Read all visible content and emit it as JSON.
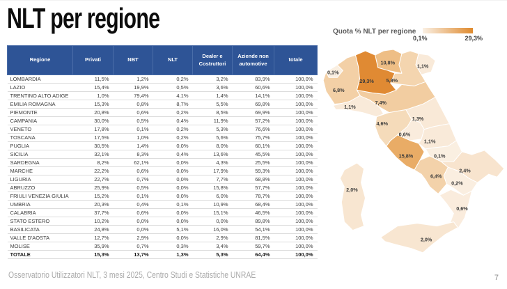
{
  "title": "NLT per regione",
  "footer": "Osservatorio Utilizzatori NLT, 3 mesi 2025, Centro Studi e Statistiche UNRAE",
  "page_number": "7",
  "table": {
    "headers": [
      "Regione",
      "Privati",
      "NBT",
      "NLT",
      "Dealer e Costruttori",
      "Aziende non automotive",
      "totale"
    ],
    "rows": [
      [
        "LOMBARDIA",
        "11,5%",
        "1,2%",
        "0,2%",
        "3,2%",
        "83,9%",
        "100,0%"
      ],
      [
        "LAZIO",
        "15,4%",
        "19,9%",
        "0,5%",
        "3,6%",
        "60,6%",
        "100,0%"
      ],
      [
        "TRENTINO ALTO ADIGE",
        "1,0%",
        "79,4%",
        "4,1%",
        "1,4%",
        "14,1%",
        "100,0%"
      ],
      [
        "EMILIA ROMAGNA",
        "15,3%",
        "0,8%",
        "8,7%",
        "5,5%",
        "69,8%",
        "100,0%"
      ],
      [
        "PIEMONTE",
        "20,8%",
        "0,6%",
        "0,2%",
        "8,5%",
        "69,9%",
        "100,0%"
      ],
      [
        "CAMPANIA",
        "30,0%",
        "0,5%",
        "0,4%",
        "11,9%",
        "57,2%",
        "100,0%"
      ],
      [
        "VENETO",
        "17,8%",
        "0,1%",
        "0,2%",
        "5,3%",
        "76,6%",
        "100,0%"
      ],
      [
        "TOSCANA",
        "17,5%",
        "1,0%",
        "0,2%",
        "5,6%",
        "75,7%",
        "100,0%"
      ],
      [
        "PUGLIA",
        "30,5%",
        "1,4%",
        "0,0%",
        "8,0%",
        "60,1%",
        "100,0%"
      ],
      [
        "SICILIA",
        "32,1%",
        "8,3%",
        "0,4%",
        "13,6%",
        "45,5%",
        "100,0%"
      ],
      [
        "SARDEGNA",
        "8,2%",
        "62,1%",
        "0,0%",
        "4,3%",
        "25,5%",
        "100,0%"
      ],
      [
        "MARCHE",
        "22,2%",
        "0,6%",
        "0,0%",
        "17,9%",
        "59,3%",
        "100,0%"
      ],
      [
        "LIGURIA",
        "22,7%",
        "0,7%",
        "0,0%",
        "7,7%",
        "68,8%",
        "100,0%"
      ],
      [
        "ABRUZZO",
        "25,9%",
        "0,5%",
        "0,0%",
        "15,8%",
        "57,7%",
        "100,0%"
      ],
      [
        "FRIULI VENEZIA GIULIA",
        "15,2%",
        "0,1%",
        "0,0%",
        "6,0%",
        "78,7%",
        "100,0%"
      ],
      [
        "UMBRIA",
        "20,3%",
        "0,4%",
        "0,1%",
        "10,9%",
        "68,4%",
        "100,0%"
      ],
      [
        "CALABRIA",
        "37,7%",
        "0,6%",
        "0,0%",
        "15,1%",
        "46,5%",
        "100,0%"
      ],
      [
        "STATO ESTERO",
        "10,2%",
        "0,0%",
        "0,0%",
        "0,0%",
        "89,8%",
        "100,0%"
      ],
      [
        "BASILICATA",
        "24,8%",
        "0,0%",
        "5,1%",
        "16,0%",
        "54,1%",
        "100,0%"
      ],
      [
        "VALLE D'AOSTA",
        "12,7%",
        "2,9%",
        "0,0%",
        "2,9%",
        "81,5%",
        "100,0%"
      ],
      [
        "MOLISE",
        "35,9%",
        "0,7%",
        "0,3%",
        "3,4%",
        "59,7%",
        "100,0%"
      ]
    ],
    "total_row": [
      "TOTALE",
      "15,3%",
      "13,7%",
      "1,3%",
      "5,3%",
      "64,4%",
      "100,0%"
    ],
    "header_bg": "#2E5496",
    "header_divider": "#4A6DA8"
  },
  "legend": {
    "title": "Quota % NLT per regione",
    "min": "0,1%",
    "max": "29,3%",
    "gradient_start": "#FAF0E4",
    "gradient_end": "#DF8A2E"
  },
  "map": {
    "regions": [
      {
        "id": "piemonte",
        "name": "Piemonte",
        "value": "6,8%",
        "color": "#F3D0A6"
      },
      {
        "id": "emilia",
        "name": "Emilia Romagna",
        "value": "7,4%",
        "color": "#F2CDA1"
      },
      {
        "id": "veneto",
        "name": "Veneto",
        "value": "5,8%",
        "color": "#F4D5AF"
      },
      {
        "id": "friuli",
        "name": "Friuli Venezia Giulia",
        "value": "1,1%",
        "color": "#F9EAD9"
      },
      {
        "id": "trentino",
        "name": "Trentino Alto Adige",
        "value": "10,8%",
        "color": "#EEBE85"
      },
      {
        "id": "lombardia",
        "name": "Lombardia",
        "value": "29,3%",
        "color": "#E08A33"
      },
      {
        "id": "valle-daosta",
        "name": "Valle d'Aosta",
        "value": "0,1%",
        "color": "#FAEFE1"
      },
      {
        "id": "liguria",
        "name": "Liguria",
        "value": "1,1%",
        "color": "#F9EAD9"
      },
      {
        "id": "toscana",
        "name": "Toscana",
        "value": "4,6%",
        "color": "#F5DBBA"
      },
      {
        "id": "marche",
        "name": "Marche",
        "value": "1,3%",
        "color": "#F9E9D7"
      },
      {
        "id": "umbria",
        "name": "Umbria",
        "value": "0,6%",
        "color": "#FAECDD"
      },
      {
        "id": "abruzzo",
        "name": "Abruzzo",
        "value": "1,1%",
        "color": "#F9EAD9"
      },
      {
        "id": "molise",
        "name": "Molise",
        "value": "0,1%",
        "color": "#FAEFE1"
      },
      {
        "id": "lazio",
        "name": "Lazio",
        "value": "15,8%",
        "color": "#E9AC66"
      },
      {
        "id": "puglia",
        "name": "Puglia",
        "value": "2,4%",
        "color": "#F8E4CE"
      },
      {
        "id": "campania",
        "name": "Campania",
        "value": "6,4%",
        "color": "#F3D2AA"
      },
      {
        "id": "basilicata",
        "name": "Basilicata",
        "value": "0,2%",
        "color": "#FAEEE0"
      },
      {
        "id": "calabria",
        "name": "Calabria",
        "value": "0,6%",
        "color": "#FAECDD"
      },
      {
        "id": "sicilia",
        "name": "Sicilia",
        "value": "2,0%",
        "color": "#F8E6D1"
      },
      {
        "id": "sardegna",
        "name": "Sardegna",
        "value": "2,0%",
        "color": "#F8E6D1"
      }
    ]
  },
  "chart_data": {
    "type": "heatmap",
    "subtype": "choropleth-italy",
    "title": "Quota % NLT per regione",
    "categories": [
      "Lombardia",
      "Lazio",
      "Trentino Alto Adige",
      "Emilia Romagna",
      "Piemonte",
      "Campania",
      "Veneto",
      "Toscana",
      "Puglia",
      "Sardegna",
      "Sicilia",
      "Marche",
      "Friuli Venezia Giulia",
      "Liguria",
      "Abruzzo",
      "Umbria",
      "Calabria",
      "Basilicata",
      "Molise",
      "Valle d'Aosta"
    ],
    "values": [
      29.3,
      15.8,
      10.8,
      7.4,
      6.8,
      6.4,
      5.8,
      4.6,
      2.4,
      2.0,
      2.0,
      1.3,
      1.1,
      1.1,
      1.1,
      0.6,
      0.6,
      0.2,
      0.1,
      0.1
    ],
    "range": [
      0.1,
      29.3
    ],
    "legend_position": "top-right"
  }
}
